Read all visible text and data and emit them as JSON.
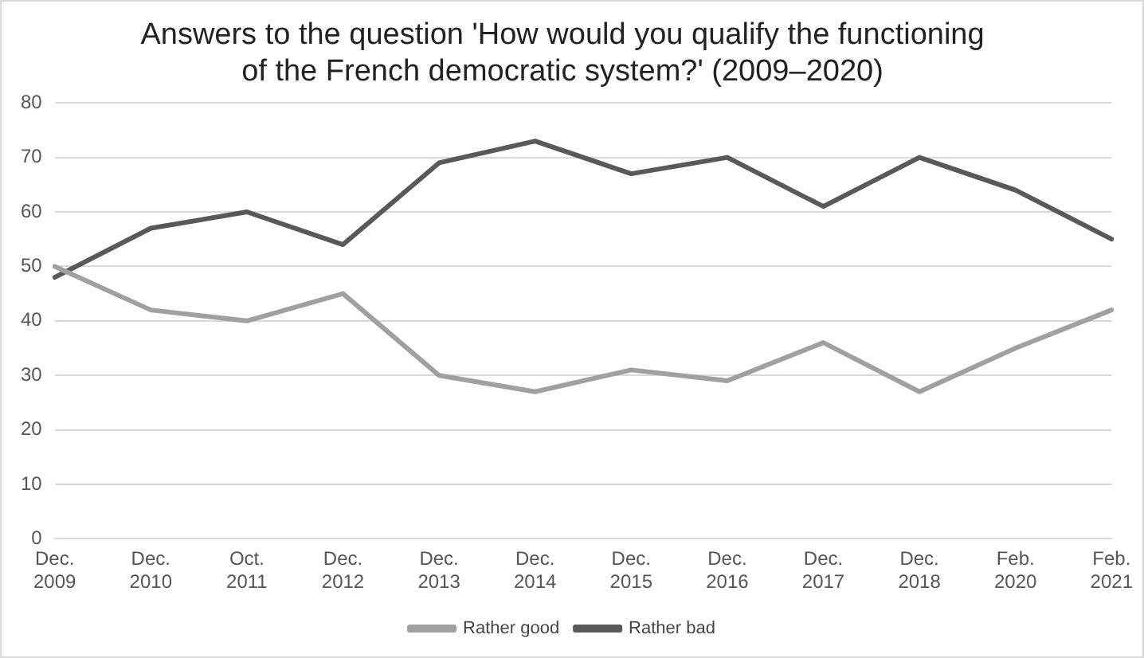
{
  "chart_data": {
    "type": "line",
    "title": "Answers to the question 'How would you qualify the functioning of the French democratic system?' (2009–2020)",
    "categories": [
      "Dec. 2009",
      "Dec. 2010",
      "Oct. 2011",
      "Dec. 2012",
      "Dec. 2013",
      "Dec. 2014",
      "Dec. 2015",
      "Dec. 2016",
      "Dec. 2017",
      "Dec. 2018",
      "Feb. 2020",
      "Feb. 2021"
    ],
    "series": [
      {
        "name": "Rather good",
        "color": "#a0a0a0",
        "values": [
          50,
          42,
          40,
          45,
          30,
          27,
          31,
          29,
          36,
          27,
          35,
          42
        ]
      },
      {
        "name": "Rather bad",
        "color": "#595959",
        "values": [
          48,
          57,
          60,
          54,
          69,
          73,
          67,
          70,
          61,
          70,
          64,
          55
        ]
      }
    ],
    "ylim": [
      0,
      80
    ],
    "yticks": [
      0,
      10,
      20,
      30,
      40,
      50,
      60,
      70,
      80
    ],
    "grid": "y",
    "legend": "bottom",
    "marker": "none",
    "line_style": "solid"
  }
}
